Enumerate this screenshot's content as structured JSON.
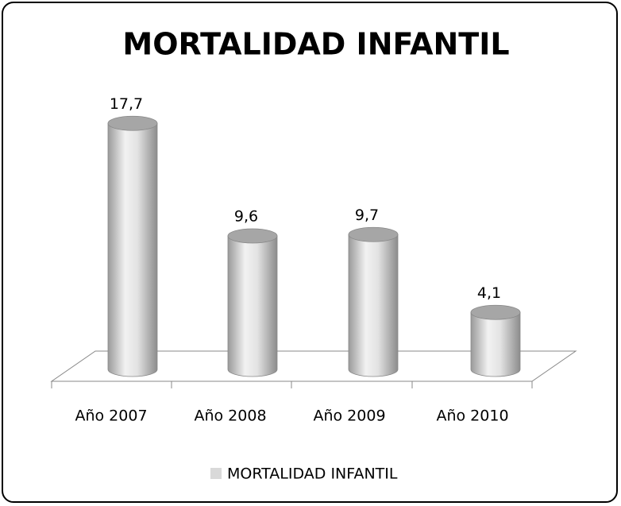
{
  "chart_data": {
    "type": "bar3d",
    "title": "MORTALIDAD INFANTIL",
    "categories": [
      "Año 2007",
      "Año 2008",
      "Año 2009",
      "Año 2010"
    ],
    "series": [
      {
        "name": "MORTALIDAD INFANTIL",
        "color": "#d9d9d9",
        "values": [
          17.7,
          9.6,
          9.7,
          4.1
        ],
        "value_labels": [
          "17,7",
          "9,6",
          "9,7",
          "4,1"
        ]
      }
    ]
  }
}
